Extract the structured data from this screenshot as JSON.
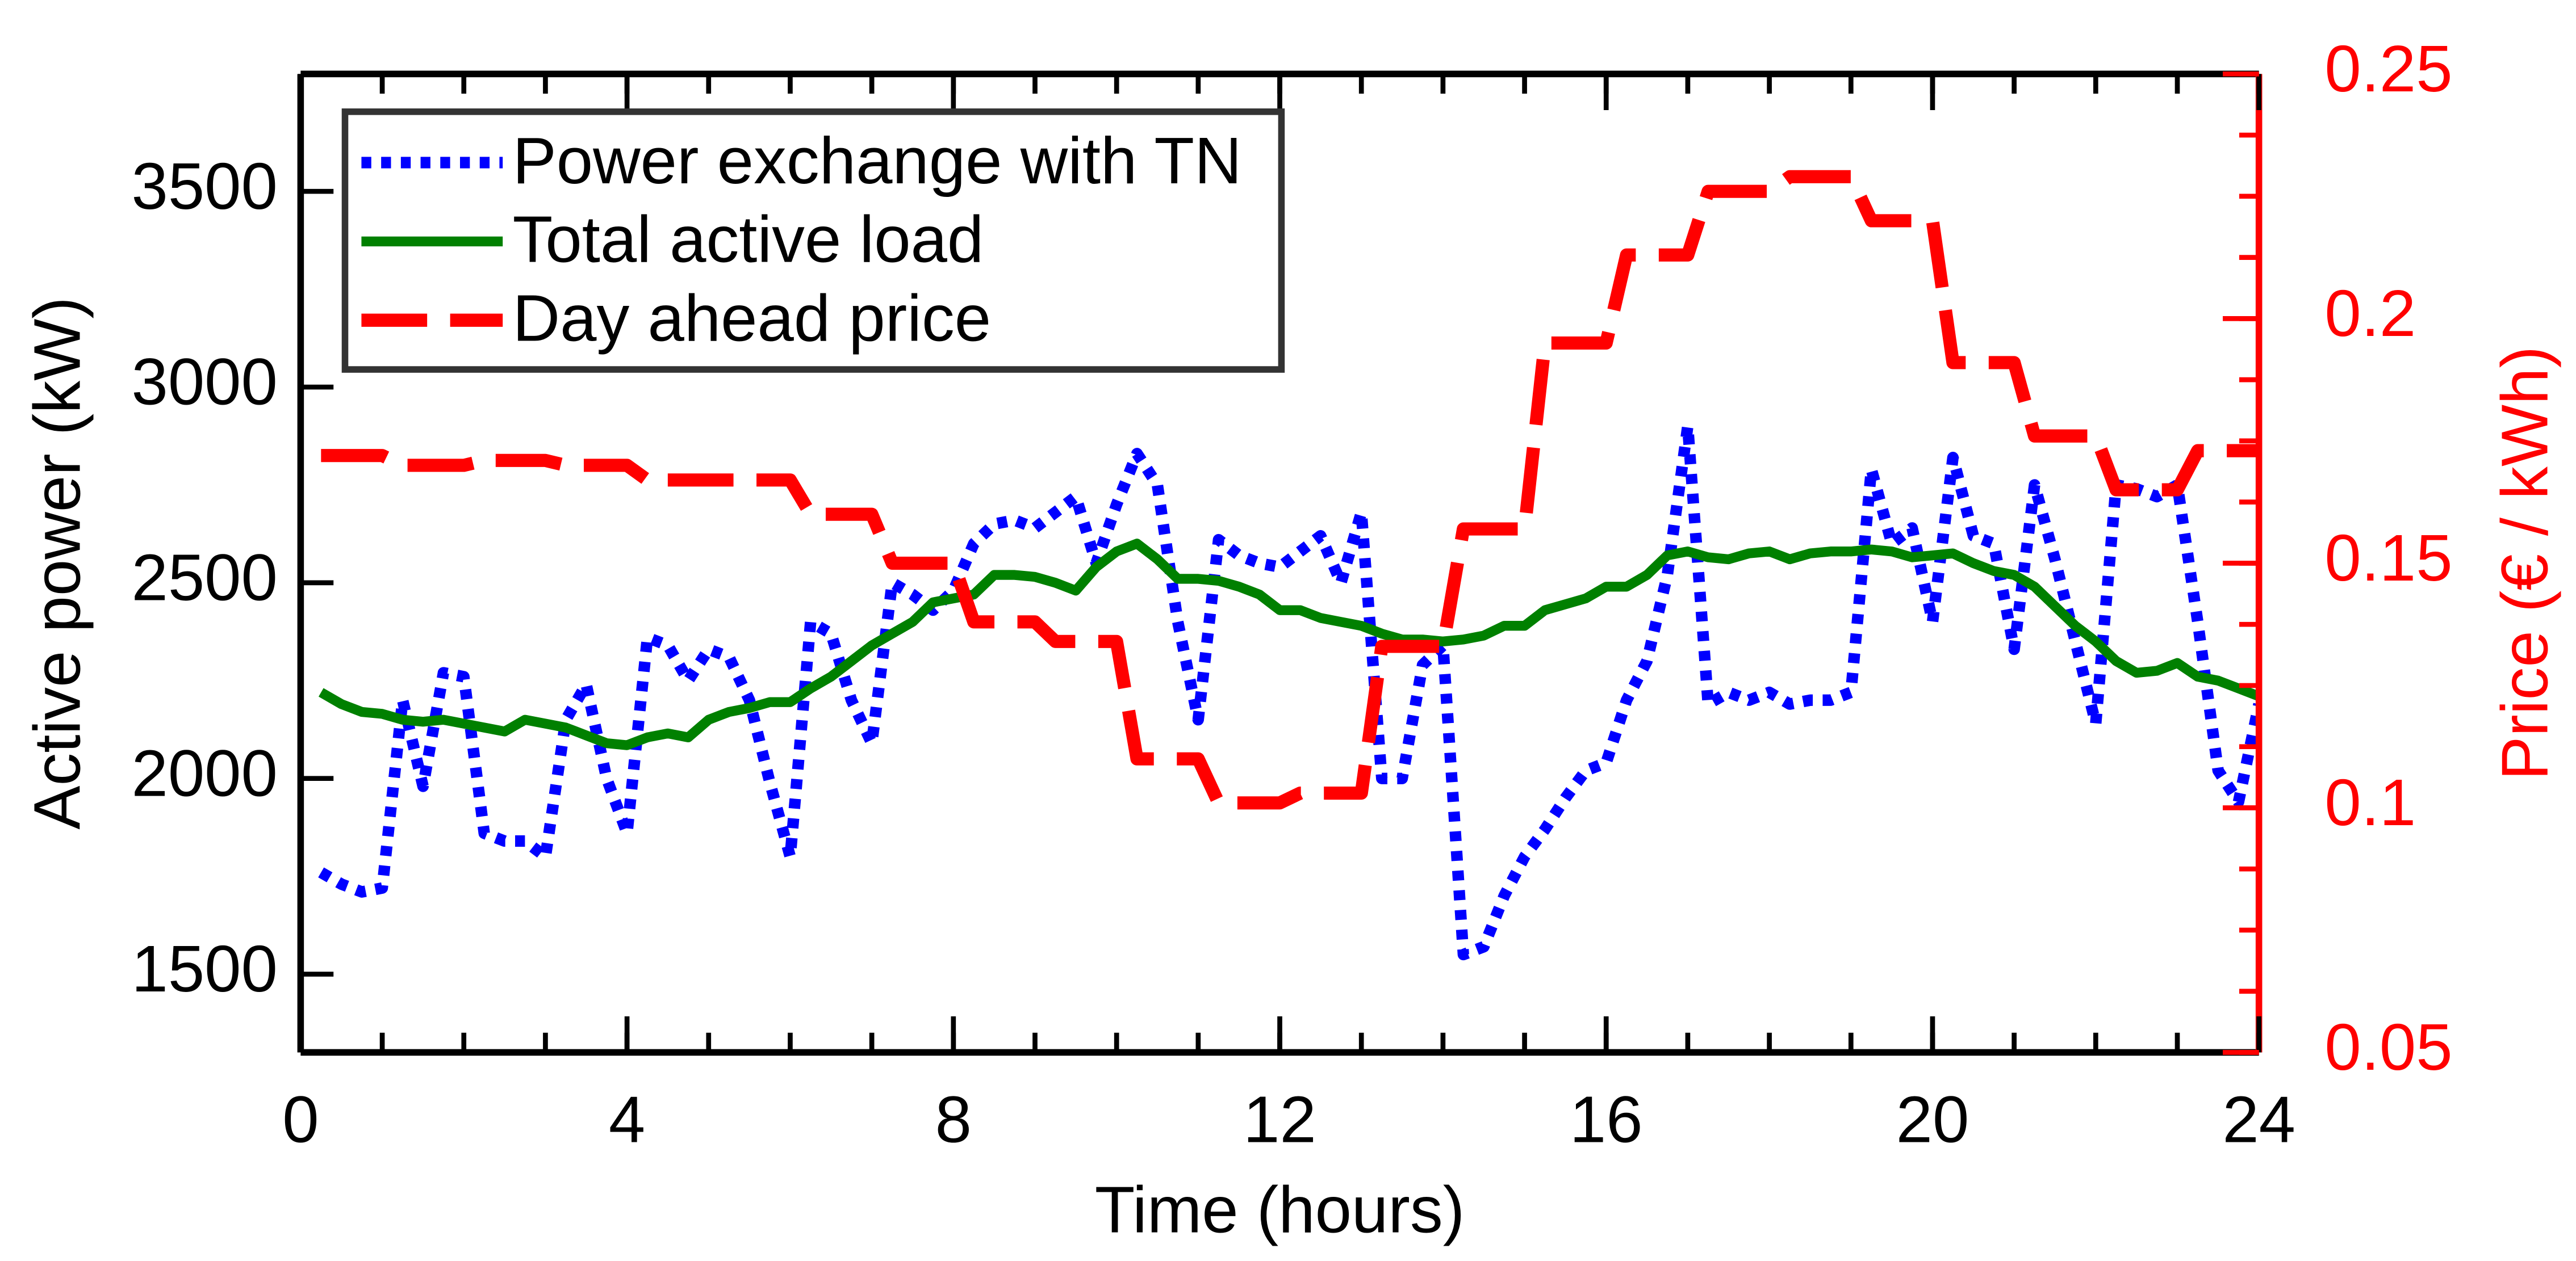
{
  "chart_data": {
    "type": "line",
    "xlabel": "Time (hours)",
    "ylabel": "Active power (kW)",
    "y2label": "Price (€ / kWh)",
    "xlim": [
      0,
      24
    ],
    "xticks": [
      0,
      4,
      8,
      12,
      16,
      20,
      24
    ],
    "ylim": [
      1300,
      3800
    ],
    "yticks": [
      1500,
      2000,
      2500,
      3000,
      3500
    ],
    "y2lim": [
      0.05,
      0.25
    ],
    "y2ticks": [
      0.05,
      0.1,
      0.15,
      0.2,
      0.25
    ],
    "y2color": "#ff0000",
    "legend": "upper left",
    "x": [
      0.25,
      0.5,
      0.75,
      1,
      1.25,
      1.5,
      1.75,
      2,
      2.25,
      2.5,
      2.75,
      3,
      3.25,
      3.5,
      3.75,
      4,
      4.25,
      4.5,
      4.75,
      5,
      5.25,
      5.5,
      5.75,
      6,
      6.25,
      6.5,
      6.75,
      7,
      7.25,
      7.5,
      7.75,
      8,
      8.25,
      8.5,
      8.75,
      9,
      9.25,
      9.5,
      9.75,
      10,
      10.25,
      10.5,
      10.75,
      11,
      11.25,
      11.5,
      11.75,
      12,
      12.25,
      12.5,
      12.75,
      13,
      13.25,
      13.5,
      13.75,
      14,
      14.25,
      14.5,
      14.75,
      15,
      15.25,
      15.5,
      15.75,
      16,
      16.25,
      16.5,
      16.75,
      17,
      17.25,
      17.5,
      17.75,
      18,
      18.25,
      18.5,
      18.75,
      19,
      19.25,
      19.5,
      19.75,
      20,
      20.25,
      20.5,
      20.75,
      21,
      21.25,
      21.5,
      21.75,
      22,
      22.25,
      22.5,
      22.75,
      23,
      23.25,
      23.5,
      23.75,
      24
    ],
    "series": [
      {
        "name": "Power exchange with TN",
        "color": "#0000ff",
        "linestyle": "dotted",
        "values": [
          1760,
          1730,
          1710,
          1720,
          2200,
          1980,
          2270,
          2260,
          1860,
          1840,
          1840,
          1800,
          2150,
          2240,
          2000,
          1860,
          2360,
          2340,
          2250,
          2330,
          2310,
          2200,
          1990,
          1800,
          2400,
          2370,
          2200,
          2090,
          2500,
          2470,
          2430,
          2480,
          2600,
          2650,
          2660,
          2640,
          2680,
          2720,
          2550,
          2700,
          2830,
          2750,
          2400,
          2150,
          2610,
          2570,
          2550,
          2540,
          2580,
          2620,
          2500,
          2680,
          2000,
          2000,
          2290,
          2340,
          1550,
          1570,
          1700,
          1800,
          1870,
          1950,
          2020,
          2040,
          2200,
          2300,
          2520,
          2900,
          2190,
          2220,
          2200,
          2220,
          2190,
          2200,
          2200,
          2220,
          2790,
          2600,
          2640,
          2400,
          2820,
          2620,
          2600,
          2330,
          2750,
          2560,
          2350,
          2140,
          2750,
          2740,
          2720,
          2750,
          2400,
          2020,
          1940,
          2190
        ]
      },
      {
        "name": "Total active load",
        "color": "#008000",
        "linestyle": "solid",
        "values": [
          2220,
          2190,
          2170,
          2165,
          2150,
          2145,
          2150,
          2140,
          2130,
          2120,
          2150,
          2140,
          2130,
          2110,
          2090,
          2085,
          2105,
          2115,
          2105,
          2150,
          2170,
          2180,
          2195,
          2195,
          2230,
          2260,
          2300,
          2340,
          2370,
          2400,
          2450,
          2460,
          2470,
          2520,
          2520,
          2515,
          2500,
          2480,
          2540,
          2580,
          2600,
          2560,
          2510,
          2510,
          2505,
          2490,
          2470,
          2430,
          2430,
          2410,
          2400,
          2390,
          2370,
          2355,
          2355,
          2350,
          2355,
          2365,
          2390,
          2390,
          2430,
          2445,
          2460,
          2490,
          2490,
          2520,
          2570,
          2580,
          2565,
          2560,
          2575,
          2580,
          2560,
          2575,
          2580,
          2580,
          2585,
          2580,
          2565,
          2570,
          2575,
          2550,
          2530,
          2520,
          2490,
          2440,
          2390,
          2350,
          2300,
          2270,
          2275,
          2295,
          2260,
          2250,
          2230,
          2210
        ]
      },
      {
        "name": "Day ahead price",
        "color": "#ff0000",
        "linestyle": "dashed",
        "axis": "y2",
        "values": [
          0.172,
          0.172,
          0.172,
          0.172,
          0.17,
          0.17,
          0.17,
          0.17,
          0.171,
          0.171,
          0.171,
          0.171,
          0.17,
          0.17,
          0.17,
          0.17,
          0.167,
          0.167,
          0.167,
          0.167,
          0.167,
          0.167,
          0.167,
          0.167,
          0.16,
          0.16,
          0.16,
          0.16,
          0.15,
          0.15,
          0.15,
          0.15,
          0.138,
          0.138,
          0.138,
          0.138,
          0.134,
          0.134,
          0.134,
          0.134,
          0.11,
          0.11,
          0.11,
          0.11,
          0.101,
          0.101,
          0.101,
          0.101,
          0.103,
          0.103,
          0.103,
          0.103,
          0.133,
          0.133,
          0.133,
          0.133,
          0.157,
          0.157,
          0.157,
          0.157,
          0.195,
          0.195,
          0.195,
          0.195,
          0.213,
          0.213,
          0.213,
          0.213,
          0.226,
          0.226,
          0.226,
          0.226,
          0.229,
          0.229,
          0.229,
          0.229,
          0.22,
          0.22,
          0.22,
          0.22,
          0.191,
          0.191,
          0.191,
          0.191,
          0.176,
          0.176,
          0.176,
          0.176,
          0.165,
          0.165,
          0.165,
          0.165,
          0.173,
          0.173,
          0.173,
          0.173
        ]
      }
    ]
  }
}
